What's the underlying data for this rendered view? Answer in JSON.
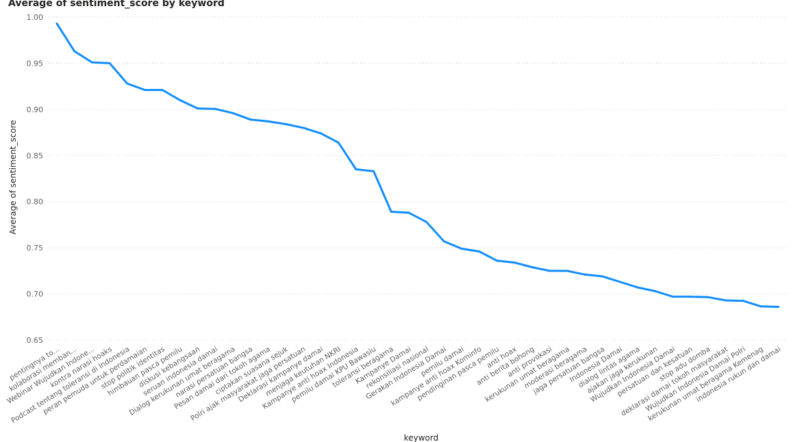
{
  "chart_data": {
    "type": "line",
    "title": "Average of sentiment_score by keyword",
    "xlabel": "keyword",
    "ylabel": "Average of sentiment_score",
    "ylim": [
      0.65,
      1.0
    ],
    "yticks": [
      "1.00",
      "0.95",
      "0.90",
      "0.85",
      "0.80",
      "0.75",
      "0.70",
      "0.65"
    ],
    "grid": true,
    "line_color": "#118DFF",
    "categories": [
      "pentingnya to...",
      "kolaborasi memban...",
      "Webinar Wujudkan Indone...",
      "kontra narasi hoaks",
      "Podcast tentang toleransi di Indonesia",
      "peran pemuda untuk perdamaian",
      "stop politik identitas",
      "himbauan pasca pemilu",
      "diskusi kebangsaan",
      "seruan indonesia damai",
      "Dialog kerukunan umat beragama",
      "narasi persatuan bangsa",
      "Pesan damai dari tokoh agama",
      "ciptakan suasana sejuk",
      "Polri ajak masyarakat jaga persatuan",
      "Deklarasi kampanye damai",
      "menjaga keutuhan NKRI",
      "Kampanye anti hoax Indonesia",
      "pemilu damai KPU Bawaslu",
      "toleransi beragama",
      "Kampanye Damai",
      "rekonsiliasi nasional",
      "Gerakan Indonesia Damai",
      "pemilu damai",
      "kampanye anti hoax Kominfo",
      "pendinginan pasca pemilu",
      "anti hoax",
      "anti berita bohong",
      "anti provokasi",
      "kerukunan umat beragama",
      "moderasi beragama",
      "jaga persatuan bangsa",
      "Indonesia Damai",
      "dialog lintas agama",
      "ajakan jaga kerukunan",
      "Wujudkan Indonesia Damai",
      "persatuan dan kesatuan",
      "stop adu domba",
      "deklarasi damai tokoh masyarakat",
      "Wujudkan Indonesia Damai Polri",
      "kerukunan umat beragama Kemenag",
      "indonesia rukun dan damai"
    ],
    "series": [
      {
        "values": [
          0.993,
          0.963,
          0.951,
          0.95,
          0.928,
          0.921,
          0.921,
          0.91,
          0.901,
          0.9005,
          0.896,
          0.889,
          0.887,
          0.884,
          0.88,
          0.874,
          0.864,
          0.835,
          0.833,
          0.789,
          0.788,
          0.778,
          0.757,
          0.749,
          0.746,
          0.736,
          0.734,
          0.729,
          0.725,
          0.725,
          0.721,
          0.719,
          0.713,
          0.707,
          0.703,
          0.697,
          0.697,
          0.6965,
          0.693,
          0.6925,
          0.6865,
          0.686
        ]
      }
    ]
  }
}
